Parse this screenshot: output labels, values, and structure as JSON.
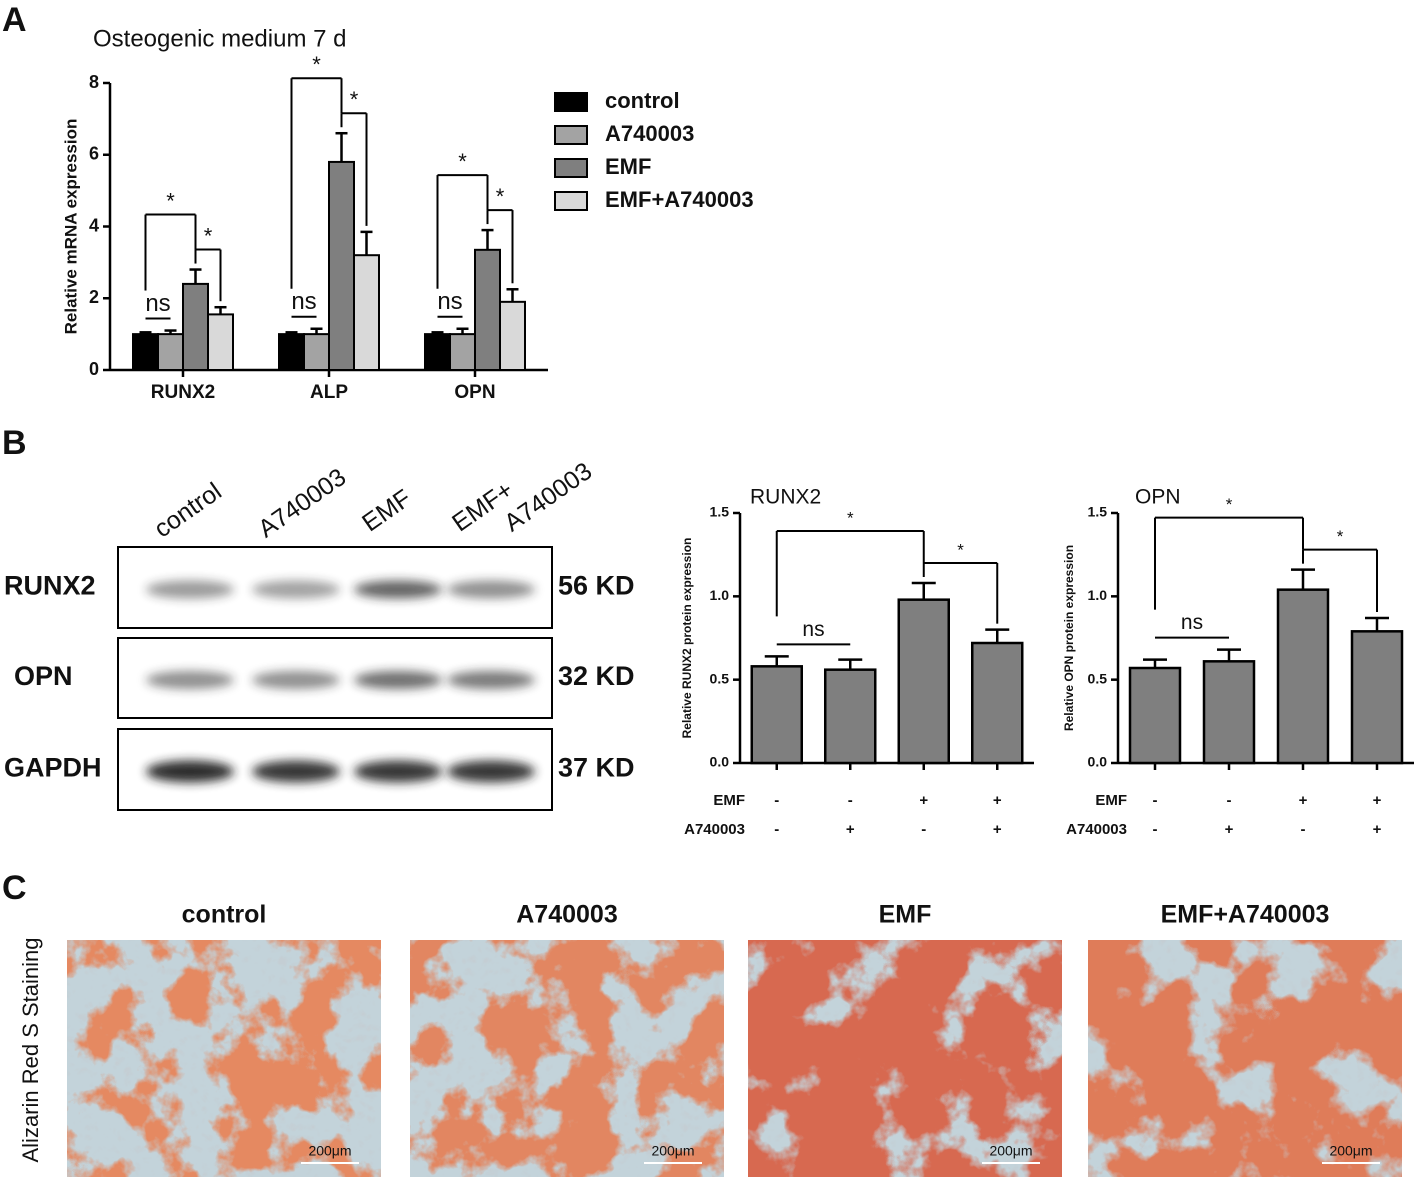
{
  "panel_labels": [
    "A",
    "B",
    "C"
  ],
  "chart_data": [
    {
      "type": "bar",
      "title": "Osteogenic medium  7 d",
      "y_label": "Relative mRNA expression",
      "categories": [
        "RUNX2",
        "ALP",
        "OPN"
      ],
      "series": [
        {
          "name": "control",
          "color": "#000000",
          "values": [
            1,
            1,
            1
          ],
          "errors": [
            0.05,
            0.05,
            0.05
          ]
        },
        {
          "name": "A740003",
          "color": "#a3a3a3",
          "values": [
            1,
            1,
            1
          ],
          "errors": [
            0.1,
            0.15,
            0.15
          ]
        },
        {
          "name": "EMF",
          "color": "#7f7f7f",
          "values": [
            2.4,
            5.8,
            3.35
          ],
          "errors": [
            0.4,
            0.8,
            0.55
          ]
        },
        {
          "name": "EMF+A740003",
          "color": "#d9d9d9",
          "values": [
            1.55,
            3.2,
            1.9
          ],
          "errors": [
            0.2,
            0.65,
            0.35
          ]
        }
      ],
      "ylim": [
        0,
        8
      ],
      "yticks": [
        0,
        2,
        4,
        6,
        8
      ],
      "legend": "right",
      "annotations": [
        "ns",
        "*",
        "*"
      ]
    },
    {
      "type": "bar",
      "title": "RUNX2",
      "y_label": "Relative RUNX2 protein expression",
      "values": [
        0.58,
        0.56,
        0.98,
        0.72
      ],
      "errors": [
        0.06,
        0.06,
        0.1,
        0.08
      ],
      "color": "#7f7f7f",
      "conditions": [
        {
          "name": "EMF",
          "marks": [
            "-",
            "-",
            "+",
            "+"
          ]
        },
        {
          "name": "A740003",
          "marks": [
            "-",
            "+",
            "-",
            "+"
          ]
        }
      ],
      "ylim": [
        0,
        1.5
      ],
      "yticks": [
        {
          "value": 0,
          "label": "0.0"
        },
        0.5,
        {
          "value": 1,
          "label": "1.0"
        },
        1.5
      ],
      "annotations": [
        "ns",
        "*",
        "*"
      ]
    },
    {
      "type": "bar",
      "title": "OPN",
      "y_label": "Relative OPN protein expression",
      "values": [
        0.57,
        0.61,
        1.04,
        0.79
      ],
      "errors": [
        0.05,
        0.07,
        0.12,
        0.08
      ],
      "color": "#7f7f7f",
      "conditions": [
        {
          "name": "EMF",
          "marks": [
            "-",
            "-",
            "+",
            "+"
          ]
        },
        {
          "name": "A740003",
          "marks": [
            "-",
            "+",
            "-",
            "+"
          ]
        }
      ],
      "ylim": [
        0,
        1.5
      ],
      "yticks": [
        {
          "value": 0,
          "label": "0.0"
        },
        0.5,
        {
          "value": 1,
          "label": "1.0"
        },
        1.5
      ],
      "annotations": [
        "ns",
        "*",
        "*"
      ]
    }
  ],
  "blot": {
    "lanes": [
      "control",
      "A740003",
      "EMF",
      [
        "EMF+",
        "A740003"
      ]
    ],
    "rows": [
      {
        "name": "RUNX2",
        "size": "56 KD"
      },
      {
        "name": "OPN",
        "size": "32 KD"
      },
      {
        "name": "GAPDH",
        "size": "37 KD"
      }
    ]
  },
  "staining": {
    "label": "Alizarin Red S Staining",
    "groups": [
      "control",
      "A740003",
      "EMF",
      "EMF+A740003"
    ],
    "scale": "200μm"
  }
}
